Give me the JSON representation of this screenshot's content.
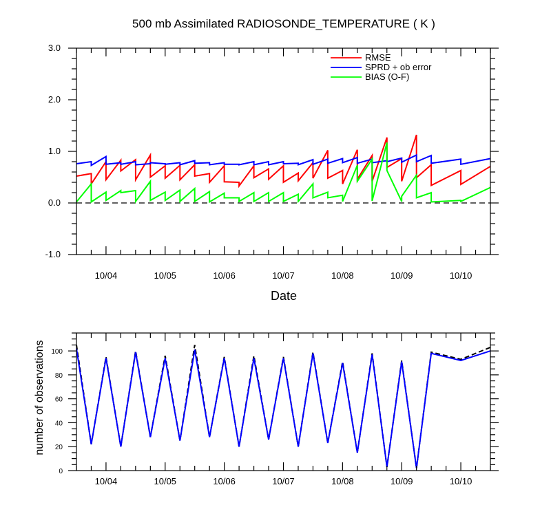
{
  "chart_data": [
    {
      "type": "line",
      "title": "500 mb Assimilated RADIOSONDE_TEMPERATURE ( K )",
      "xlabel": "Date",
      "ylabel": "",
      "x_tick_labels": [
        "10/04",
        "10/05",
        "10/06",
        "10/07",
        "10/08",
        "10/09",
        "10/10"
      ],
      "x_tick_values": [
        1,
        2,
        3,
        4,
        5,
        6,
        7
      ],
      "xlim": [
        0.5,
        7.5
      ],
      "ylim": [
        -1.0,
        3.0
      ],
      "y_tick_labels": [
        "-1.0",
        "0.0",
        "1.0",
        "2.0",
        "3.0"
      ],
      "y_tick_values": [
        -1,
        0,
        1,
        2,
        3
      ],
      "legend_position": "top-right",
      "zero_line": "dashed",
      "series": [
        {
          "name": "RMSE",
          "color": "#ff0000",
          "points": [
            [
              0.5,
              0.52
            ],
            [
              0.75,
              0.57
            ],
            [
              0.75,
              0.37
            ],
            [
              1.0,
              0.8
            ],
            [
              1.0,
              0.45
            ],
            [
              1.25,
              0.83
            ],
            [
              1.25,
              0.62
            ],
            [
              1.5,
              0.84
            ],
            [
              1.5,
              0.45
            ],
            [
              1.75,
              0.93
            ],
            [
              1.75,
              0.5
            ],
            [
              2.0,
              0.72
            ],
            [
              2.0,
              0.48
            ],
            [
              2.25,
              0.73
            ],
            [
              2.25,
              0.45
            ],
            [
              2.5,
              0.74
            ],
            [
              2.5,
              0.52
            ],
            [
              2.75,
              0.57
            ],
            [
              2.75,
              0.4
            ],
            [
              3.0,
              0.72
            ],
            [
              3.0,
              0.41
            ],
            [
              3.25,
              0.4
            ],
            [
              3.25,
              0.33
            ],
            [
              3.5,
              0.72
            ],
            [
              3.5,
              0.49
            ],
            [
              3.75,
              0.66
            ],
            [
              3.75,
              0.46
            ],
            [
              4.0,
              0.72
            ],
            [
              4.0,
              0.4
            ],
            [
              4.25,
              0.58
            ],
            [
              4.25,
              0.43
            ],
            [
              4.5,
              0.78
            ],
            [
              4.5,
              0.48
            ],
            [
              4.75,
              1.02
            ],
            [
              4.75,
              0.48
            ],
            [
              5.0,
              0.63
            ],
            [
              5.0,
              0.37
            ],
            [
              5.25,
              1.03
            ],
            [
              5.25,
              0.46
            ],
            [
              5.5,
              0.92
            ],
            [
              5.5,
              0.42
            ],
            [
              5.75,
              1.27
            ],
            [
              5.75,
              0.69
            ],
            [
              6.0,
              0.86
            ],
            [
              6.0,
              0.42
            ],
            [
              6.25,
              1.32
            ],
            [
              6.25,
              0.49
            ],
            [
              6.5,
              0.74
            ],
            [
              6.5,
              0.34
            ],
            [
              7.0,
              0.63
            ],
            [
              7.0,
              0.36
            ],
            [
              7.5,
              0.71
            ]
          ]
        },
        {
          "name": "SPRD + ob error",
          "color": "#0000ff",
          "points": [
            [
              0.5,
              0.76
            ],
            [
              0.75,
              0.8
            ],
            [
              0.75,
              0.73
            ],
            [
              1.0,
              0.9
            ],
            [
              1.0,
              0.75
            ],
            [
              1.25,
              0.78
            ],
            [
              1.25,
              0.75
            ],
            [
              1.5,
              0.8
            ],
            [
              1.5,
              0.74
            ],
            [
              1.75,
              0.76
            ],
            [
              1.75,
              0.78
            ],
            [
              2.0,
              0.76
            ],
            [
              2.0,
              0.75
            ],
            [
              2.25,
              0.78
            ],
            [
              2.25,
              0.74
            ],
            [
              2.5,
              0.82
            ],
            [
              2.5,
              0.77
            ],
            [
              2.75,
              0.78
            ],
            [
              2.75,
              0.74
            ],
            [
              3.0,
              0.78
            ],
            [
              3.0,
              0.75
            ],
            [
              3.25,
              0.75
            ],
            [
              3.25,
              0.74
            ],
            [
              3.5,
              0.8
            ],
            [
              3.5,
              0.74
            ],
            [
              3.75,
              0.8
            ],
            [
              3.75,
              0.74
            ],
            [
              4.0,
              0.8
            ],
            [
              4.0,
              0.76
            ],
            [
              4.25,
              0.77
            ],
            [
              4.25,
              0.74
            ],
            [
              4.5,
              0.84
            ],
            [
              4.5,
              0.75
            ],
            [
              4.75,
              0.85
            ],
            [
              4.75,
              0.77
            ],
            [
              5.0,
              0.86
            ],
            [
              5.0,
              0.78
            ],
            [
              5.25,
              0.88
            ],
            [
              5.25,
              0.77
            ],
            [
              5.5,
              0.85
            ],
            [
              5.5,
              0.78
            ],
            [
              5.75,
              0.82
            ],
            [
              5.75,
              0.8
            ],
            [
              6.0,
              0.87
            ],
            [
              6.0,
              0.79
            ],
            [
              6.25,
              0.93
            ],
            [
              6.25,
              0.8
            ],
            [
              6.5,
              0.92
            ],
            [
              6.5,
              0.77
            ],
            [
              7.0,
              0.85
            ],
            [
              7.0,
              0.75
            ],
            [
              7.5,
              0.86
            ]
          ]
        },
        {
          "name": "BIAS (O-F)",
          "color": "#00ff00",
          "points": [
            [
              0.5,
              0.02
            ],
            [
              0.75,
              0.37
            ],
            [
              0.75,
              0.02
            ],
            [
              1.0,
              0.21
            ],
            [
              1.0,
              0.05
            ],
            [
              1.25,
              0.24
            ],
            [
              1.25,
              0.2
            ],
            [
              1.5,
              0.24
            ],
            [
              1.5,
              0.03
            ],
            [
              1.75,
              0.42
            ],
            [
              1.75,
              0.05
            ],
            [
              2.0,
              0.21
            ],
            [
              2.0,
              0.05
            ],
            [
              2.25,
              0.25
            ],
            [
              2.25,
              0.03
            ],
            [
              2.5,
              0.28
            ],
            [
              2.5,
              0.03
            ],
            [
              2.75,
              0.22
            ],
            [
              2.75,
              0.02
            ],
            [
              3.0,
              0.19
            ],
            [
              3.0,
              0.1
            ],
            [
              3.25,
              0.1
            ],
            [
              3.25,
              0.03
            ],
            [
              3.5,
              0.2
            ],
            [
              3.5,
              0.03
            ],
            [
              3.75,
              0.2
            ],
            [
              3.75,
              0.03
            ],
            [
              4.0,
              0.2
            ],
            [
              4.0,
              0.03
            ],
            [
              4.25,
              0.17
            ],
            [
              4.25,
              0.03
            ],
            [
              4.5,
              0.37
            ],
            [
              4.5,
              0.1
            ],
            [
              4.75,
              0.21
            ],
            [
              4.75,
              0.1
            ],
            [
              5.0,
              0.15
            ],
            [
              5.0,
              0.03
            ],
            [
              5.25,
              0.73
            ],
            [
              5.25,
              0.42
            ],
            [
              5.5,
              0.85
            ],
            [
              5.5,
              0.04
            ],
            [
              5.75,
              1.17
            ],
            [
              5.75,
              0.63
            ],
            [
              6.0,
              0.03
            ],
            [
              6.0,
              0.13
            ],
            [
              6.25,
              0.54
            ],
            [
              6.25,
              0.1
            ],
            [
              6.5,
              0.2
            ],
            [
              6.5,
              0.02
            ],
            [
              7.0,
              0.05
            ],
            [
              7.0,
              0.03
            ],
            [
              7.5,
              0.3
            ]
          ]
        }
      ]
    },
    {
      "type": "line",
      "title": "",
      "xlabel": "",
      "ylabel": "number of observations",
      "x_tick_labels": [
        "10/04",
        "10/05",
        "10/06",
        "10/07",
        "10/08",
        "10/09",
        "10/10"
      ],
      "x_tick_values": [
        1,
        2,
        3,
        4,
        5,
        6,
        7
      ],
      "xlim": [
        0.5,
        7.5
      ],
      "ylim": [
        0,
        115
      ],
      "y_tick_labels": [
        "0",
        "20",
        "40",
        "60",
        "80",
        "100"
      ],
      "y_tick_values": [
        0,
        20,
        40,
        60,
        80,
        100
      ],
      "series": [
        {
          "color": "#000000",
          "style": "dashed",
          "points": [
            [
              0.5,
              105
            ],
            [
              0.75,
              22
            ],
            [
              1.0,
              95
            ],
            [
              1.25,
              20
            ],
            [
              1.5,
              100
            ],
            [
              1.75,
              28
            ],
            [
              2.0,
              96
            ],
            [
              2.25,
              25
            ],
            [
              2.5,
              105
            ],
            [
              2.75,
              28
            ],
            [
              3.0,
              95
            ],
            [
              3.25,
              20
            ],
            [
              3.5,
              96
            ],
            [
              3.75,
              26
            ],
            [
              4.0,
              95
            ],
            [
              4.25,
              20
            ],
            [
              4.5,
              99
            ],
            [
              4.75,
              23
            ],
            [
              5.0,
              91
            ],
            [
              5.25,
              15
            ],
            [
              5.5,
              98
            ],
            [
              5.75,
              3
            ],
            [
              6.0,
              92
            ],
            [
              6.25,
              2
            ],
            [
              6.5,
              99
            ],
            [
              7.0,
              93
            ],
            [
              7.5,
              103
            ]
          ]
        },
        {
          "color": "#0000ff",
          "style": "solid",
          "points": [
            [
              0.5,
              102
            ],
            [
              0.75,
              22
            ],
            [
              1.0,
              94
            ],
            [
              1.25,
              20
            ],
            [
              1.5,
              99
            ],
            [
              1.75,
              28
            ],
            [
              2.0,
              94
            ],
            [
              2.25,
              25
            ],
            [
              2.5,
              101
            ],
            [
              2.75,
              28
            ],
            [
              3.0,
              94
            ],
            [
              3.25,
              20
            ],
            [
              3.5,
              94
            ],
            [
              3.75,
              26
            ],
            [
              4.0,
              94
            ],
            [
              4.25,
              20
            ],
            [
              4.5,
              98
            ],
            [
              4.75,
              23
            ],
            [
              5.0,
              90
            ],
            [
              5.25,
              15
            ],
            [
              5.5,
              97
            ],
            [
              5.75,
              3
            ],
            [
              6.0,
              91
            ],
            [
              6.25,
              2
            ],
            [
              6.5,
              98
            ],
            [
              7.0,
              92
            ],
            [
              7.5,
              100
            ]
          ]
        }
      ]
    }
  ]
}
